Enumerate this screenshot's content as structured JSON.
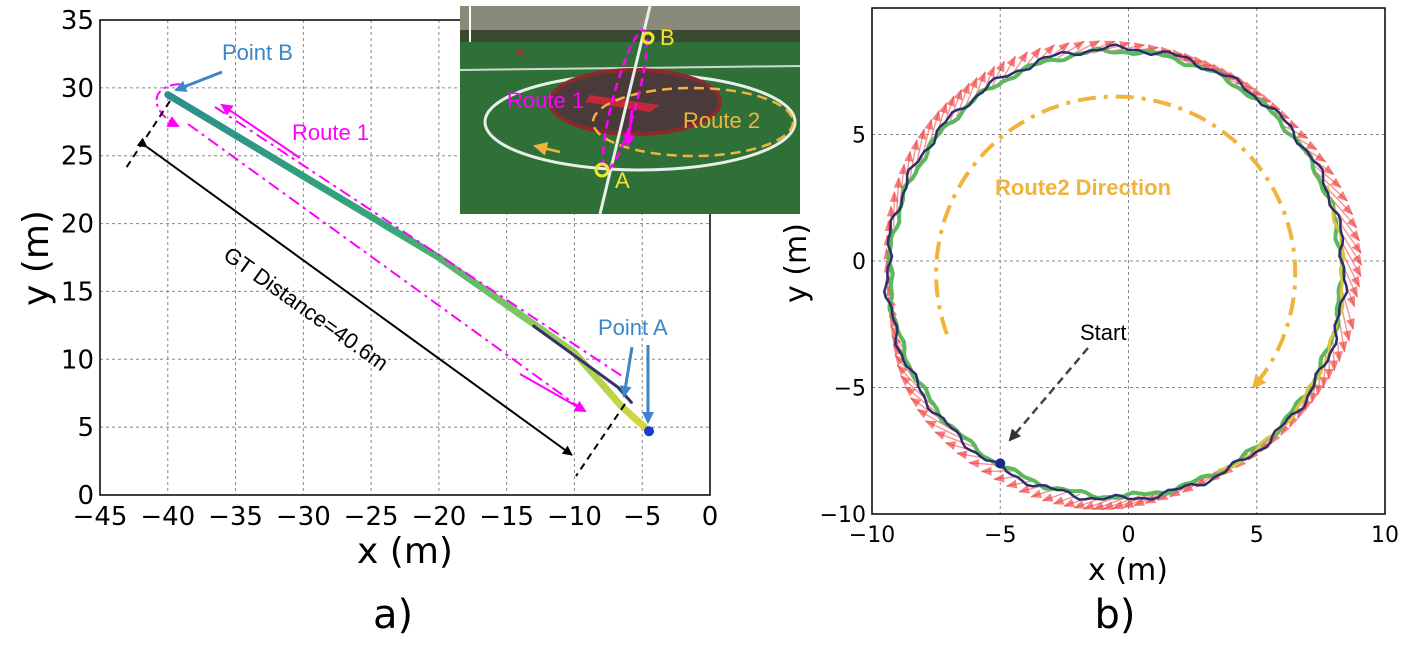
{
  "chart_data": [
    {
      "panel": "a",
      "type": "line",
      "panel_label": "a)",
      "xlabel": "x (m)",
      "ylabel": "y (m)",
      "xlim": [
        -45,
        0
      ],
      "ylim": [
        0,
        35
      ],
      "xticks": [
        -45,
        -40,
        -35,
        -30,
        -25,
        -20,
        -15,
        -10,
        -5,
        0
      ],
      "yticks": [
        0,
        5,
        10,
        15,
        20,
        25,
        30,
        35
      ],
      "grid": true,
      "series": [
        {
          "name": "trajectory",
          "x": [
            -40,
            -30,
            -20,
            -15,
            -10,
            -6.5,
            -4.5
          ],
          "y": [
            29.5,
            23.5,
            17.5,
            14.0,
            10.5,
            6.5,
            4.7
          ]
        }
      ],
      "point_a": {
        "label": "Point A",
        "x": -4.5,
        "y": 4.7
      },
      "point_b": {
        "label": "Point B",
        "x": -40,
        "y": 29.5
      },
      "route_label": "Route 1",
      "distance_label": "GT Distance=40.6m",
      "inset": {
        "label_a": "A",
        "label_b": "B",
        "route1": "Route 1",
        "route2": "Route 2"
      }
    },
    {
      "panel": "b",
      "type": "line",
      "panel_label": "b)",
      "xlabel": "x (m)",
      "ylabel": "y (m)",
      "xlim": [
        -10,
        10
      ],
      "ylim": [
        -10,
        10
      ],
      "xticks": [
        -10,
        -5,
        0,
        5,
        10
      ],
      "yticks": [
        -10,
        -5,
        0,
        5
      ],
      "grid": true,
      "circle": {
        "center_x": -0.5,
        "center_y": -0.5,
        "radius": 8.8
      },
      "start": {
        "label": "Start",
        "x": -5.0,
        "y": -8.0
      },
      "direction_label": "Route2 Direction",
      "colors": {
        "arrows": "#f03c3c",
        "track_dark": "#2c2f6e",
        "track_green": "#5cb85c",
        "track_yellow": "#d8c640",
        "route2": "#f0b43c",
        "route1": "#ff00ff",
        "point": "#3a86c8"
      }
    }
  ]
}
